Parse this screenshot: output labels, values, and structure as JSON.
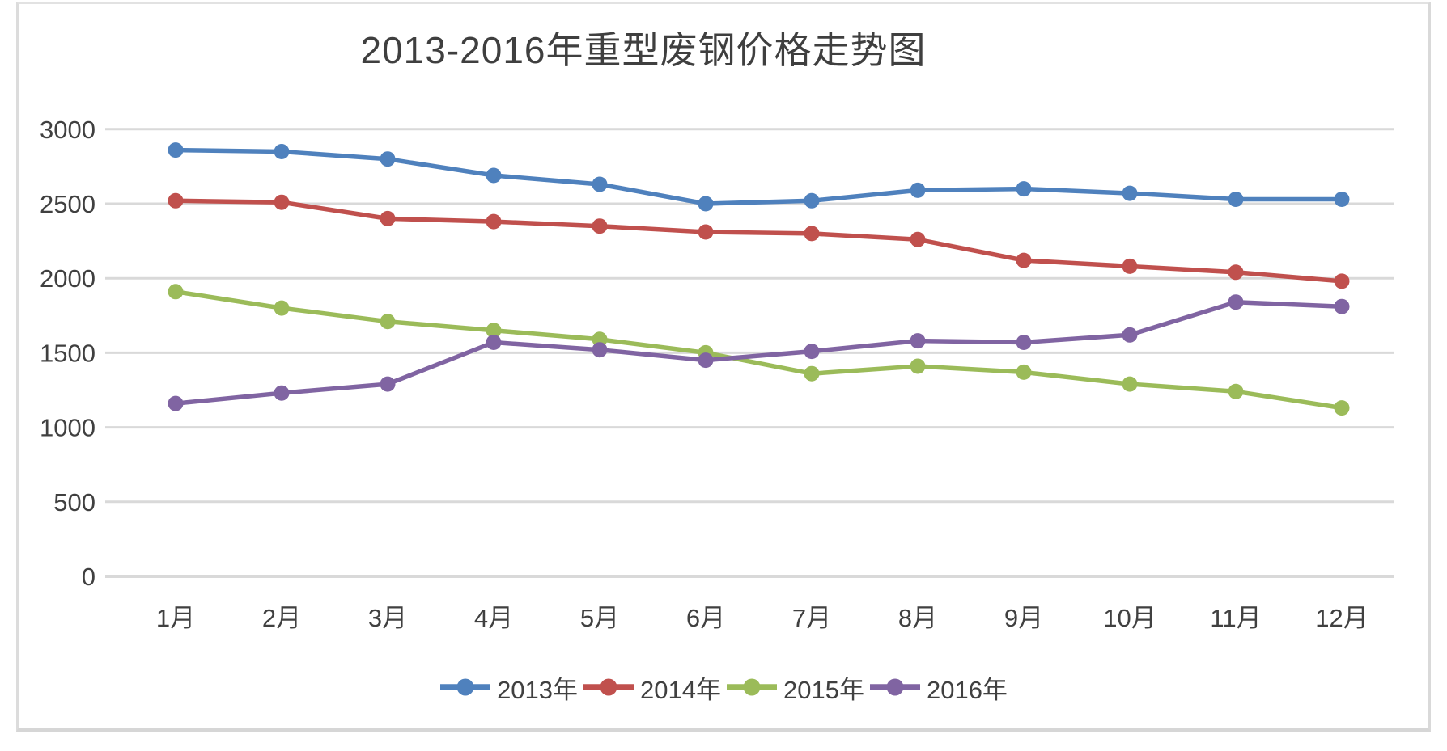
{
  "chart_data": {
    "type": "line",
    "title": "2013-2016年重型废钢价格走势图",
    "categories": [
      "1月",
      "2月",
      "3月",
      "4月",
      "5月",
      "6月",
      "7月",
      "8月",
      "9月",
      "10月",
      "11月",
      "12月"
    ],
    "series": [
      {
        "name": "2013年",
        "color": "#4F81BD",
        "values": [
          2860,
          2850,
          2800,
          2690,
          2630,
          2500,
          2520,
          2590,
          2600,
          2570,
          2530,
          2530
        ]
      },
      {
        "name": "2014年",
        "color": "#C0504D",
        "values": [
          2520,
          2510,
          2400,
          2380,
          2350,
          2310,
          2300,
          2260,
          2120,
          2080,
          2040,
          1980
        ]
      },
      {
        "name": "2015年",
        "color": "#9BBB59",
        "values": [
          1910,
          1800,
          1710,
          1650,
          1590,
          1500,
          1360,
          1410,
          1370,
          1290,
          1240,
          1130
        ]
      },
      {
        "name": "2016年",
        "color": "#8064A2",
        "values": [
          1160,
          1230,
          1290,
          1570,
          1520,
          1450,
          1510,
          1580,
          1570,
          1620,
          1840,
          1810
        ]
      }
    ],
    "xlabel": "",
    "ylabel": "",
    "ylim": [
      0,
      3000
    ],
    "yticks": [
      0,
      500,
      1000,
      1500,
      2000,
      2500,
      3000
    ],
    "grid": true,
    "gridline_color": "#d9d9d9",
    "axis_text_color": "#404040",
    "frame_border_color": "#d9d9d9",
    "legend_position": "bottom",
    "marker_style": "circle"
  }
}
